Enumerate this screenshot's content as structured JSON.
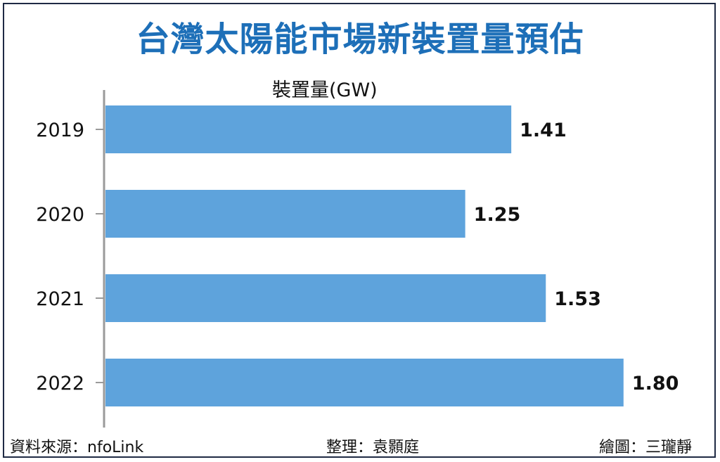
{
  "chart_data": {
    "type": "bar",
    "orientation": "horizontal",
    "title": "台灣太陽能市場新裝置量預估",
    "xlabel": "裝置量(GW)",
    "ylabel": "",
    "categories": [
      "2019",
      "2020",
      "2021",
      "2022"
    ],
    "values": [
      1.41,
      1.25,
      1.53,
      1.8
    ],
    "value_labels": [
      "1.41",
      "1.25",
      "1.53",
      "1.80"
    ],
    "xlim": [
      0,
      1.93
    ],
    "grid": false,
    "legend": "none",
    "bar_color": "#5ea3dc"
  },
  "footer": {
    "source": "資料來源：nfoLink",
    "editor": "整理：袁顥庭",
    "drawer": "繪圖：三瓏靜"
  }
}
